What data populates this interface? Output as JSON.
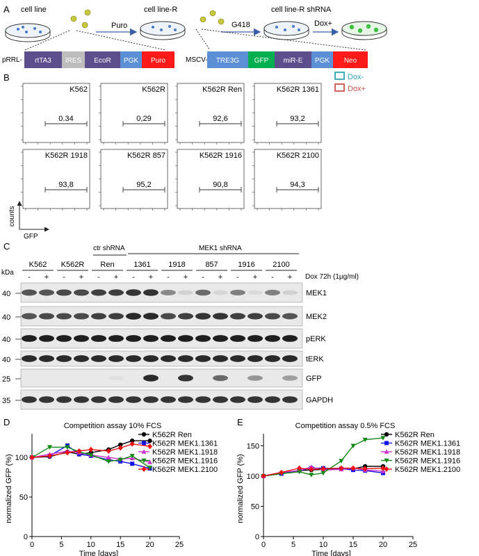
{
  "panels": {
    "a": "A",
    "b": "B",
    "c": "C",
    "d": "D",
    "e": "E"
  },
  "panelA": {
    "cell_line": "cell line",
    "cell_line_r": "cell line-R",
    "cell_line_r_shrna": "cell line-R shRNA",
    "puro_step": "Puro",
    "g418_step": "G418",
    "dox_step": "Dox+",
    "prrl_label": "pRRL-",
    "mscv_label": "MSCV-",
    "prrl_segments": [
      {
        "label": "rtTA3",
        "color": "#5c4d8c"
      },
      {
        "label": "IRES",
        "color": "#bdbdbd"
      },
      {
        "label": "EcoR",
        "color": "#5c4d8c"
      },
      {
        "label": "PGK",
        "color": "#5b8fd6"
      },
      {
        "label": "Puro",
        "color": "#ff1a1a"
      }
    ],
    "mscv_segments": [
      {
        "label": "TRE3G",
        "color": "#5b8fd6"
      },
      {
        "label": "GFP",
        "color": "#00b050"
      },
      {
        "label": "miR-E",
        "color": "#5c4d8c"
      },
      {
        "label": "PGK",
        "color": "#5b8fd6"
      },
      {
        "label": "Neo",
        "color": "#ff1a1a"
      }
    ]
  },
  "panelB": {
    "legend": [
      {
        "label": "Dox-",
        "color": "#2aa6b0"
      },
      {
        "label": "Dox+",
        "color": "#d0504c"
      }
    ],
    "ylabel": "counts",
    "xlabel": "GFP",
    "plots": [
      {
        "title": "K562",
        "value": "0.34"
      },
      {
        "title": "K562R",
        "value": "0,29"
      },
      {
        "title": "K562R Ren",
        "value": "92,6"
      },
      {
        "title": "K562R 1361",
        "value": "93,2"
      },
      {
        "title": "K562R 1918",
        "value": "93,8"
      },
      {
        "title": "K562R 857",
        "value": "95,2"
      },
      {
        "title": "K562R 1916",
        "value": "90,8"
      },
      {
        "title": "K562R 2100",
        "value": "94,3"
      }
    ]
  },
  "panelC": {
    "ctr_label": "ctr shRNA",
    "mek1_label": "MEK1 shRNA",
    "kda": "kDa",
    "groups": [
      "K562",
      "K562R",
      "Ren",
      "1361",
      "1918",
      "857",
      "1916",
      "2100"
    ],
    "lane_signs": [
      "-",
      "+",
      "-",
      "+",
      "-",
      "+",
      "-",
      "+",
      "-",
      "+",
      "-",
      "+",
      "-",
      "+",
      "-",
      "+"
    ],
    "dox_label": "Dox 72h (1µg/ml)",
    "blots": [
      {
        "name": "MEK1",
        "kda": "40"
      },
      {
        "name": "MEK2",
        "kda": "40"
      },
      {
        "name": "pERK",
        "kda": "40"
      },
      {
        "name": "tERK",
        "kda": "40"
      },
      {
        "name": "GFP",
        "kda": "25"
      },
      {
        "name": "GAPDH",
        "kda": "35"
      }
    ]
  },
  "chart_data": [
    {
      "type": "line",
      "title": "Competition assay 10% FCS",
      "xlabel": "Time [days]",
      "ylabel": "normalized GFP (%)",
      "xlim": [
        0,
        25
      ],
      "ylim": [
        0,
        130
      ],
      "xticks": [
        0,
        5,
        10,
        15,
        20,
        25
      ],
      "yticks": [
        0,
        50,
        100
      ],
      "series": [
        {
          "name": "K562R Ren",
          "color": "#000000",
          "marker": "circle",
          "x": [
            0,
            3,
            6,
            8,
            10,
            13,
            15,
            17,
            20
          ],
          "y": [
            100,
            101,
            107,
            104,
            106,
            110,
            116,
            121,
            121
          ]
        },
        {
          "name": "K562R MEK1.1361",
          "color": "#1414e6",
          "marker": "square",
          "x": [
            0,
            3,
            6,
            8,
            10,
            13,
            15,
            17,
            20
          ],
          "y": [
            100,
            102,
            115,
            104,
            102,
            97,
            95,
            92,
            86
          ]
        },
        {
          "name": "K562R MEK1.1918",
          "color": "#cc33cc",
          "marker": "triangle-up",
          "x": [
            0,
            3,
            6,
            8,
            10,
            13,
            15,
            17,
            20
          ],
          "y": [
            100,
            104,
            108,
            106,
            103,
            100,
            98,
            99,
            94
          ]
        },
        {
          "name": "K562R MEK1.1916",
          "color": "#118811",
          "marker": "triangle-down",
          "x": [
            0,
            3,
            6,
            8,
            10,
            13,
            15,
            17,
            20
          ],
          "y": [
            100,
            113,
            113,
            107,
            103,
            95,
            97,
            102,
            87
          ]
        },
        {
          "name": "K562R MEK1.2100",
          "color": "#ee1111",
          "marker": "diamond",
          "x": [
            0,
            3,
            6,
            8,
            10,
            13,
            15,
            17,
            20
          ],
          "y": [
            100,
            102,
            106,
            108,
            110,
            108,
            112,
            117,
            114
          ]
        }
      ]
    },
    {
      "type": "line",
      "title": "Competition assay 0.5% FCS",
      "xlabel": "Time [days]",
      "ylabel": "normalized GFP (%)",
      "xlim": [
        0,
        25
      ],
      "ylim": [
        0,
        170
      ],
      "xticks": [
        0,
        5,
        10,
        15,
        20,
        25
      ],
      "yticks": [
        0,
        50,
        100,
        150
      ],
      "series": [
        {
          "name": "K562R Ren",
          "color": "#000000",
          "marker": "circle",
          "x": [
            0,
            3,
            6,
            8,
            10,
            13,
            15,
            17,
            20
          ],
          "y": [
            100,
            104,
            109,
            110,
            111,
            112,
            112,
            116,
            116
          ]
        },
        {
          "name": "K562R MEK1.1361",
          "color": "#1414e6",
          "marker": "square",
          "x": [
            0,
            3,
            6,
            8,
            10,
            13,
            15,
            17,
            20
          ],
          "y": [
            100,
            104,
            109,
            113,
            113,
            112,
            110,
            109,
            105
          ]
        },
        {
          "name": "K562R MEK1.1918",
          "color": "#cc33cc",
          "marker": "triangle-up",
          "x": [
            0,
            3,
            6,
            8,
            10,
            13,
            15,
            17,
            20
          ],
          "y": [
            100,
            106,
            109,
            115,
            110,
            111,
            113,
            110,
            108
          ]
        },
        {
          "name": "K562R MEK1.1916",
          "color": "#118811",
          "marker": "triangle-down",
          "x": [
            0,
            3,
            6,
            8,
            10,
            13,
            15,
            17,
            20
          ],
          "y": [
            100,
            104,
            107,
            102,
            105,
            125,
            150,
            160,
            163
          ]
        },
        {
          "name": "K562R MEK1.2100",
          "color": "#ee1111",
          "marker": "diamond",
          "x": [
            0,
            3,
            6,
            8,
            10,
            13,
            15,
            17,
            20
          ],
          "y": [
            100,
            106,
            113,
            111,
            112,
            113,
            113,
            112,
            113
          ]
        }
      ]
    }
  ]
}
